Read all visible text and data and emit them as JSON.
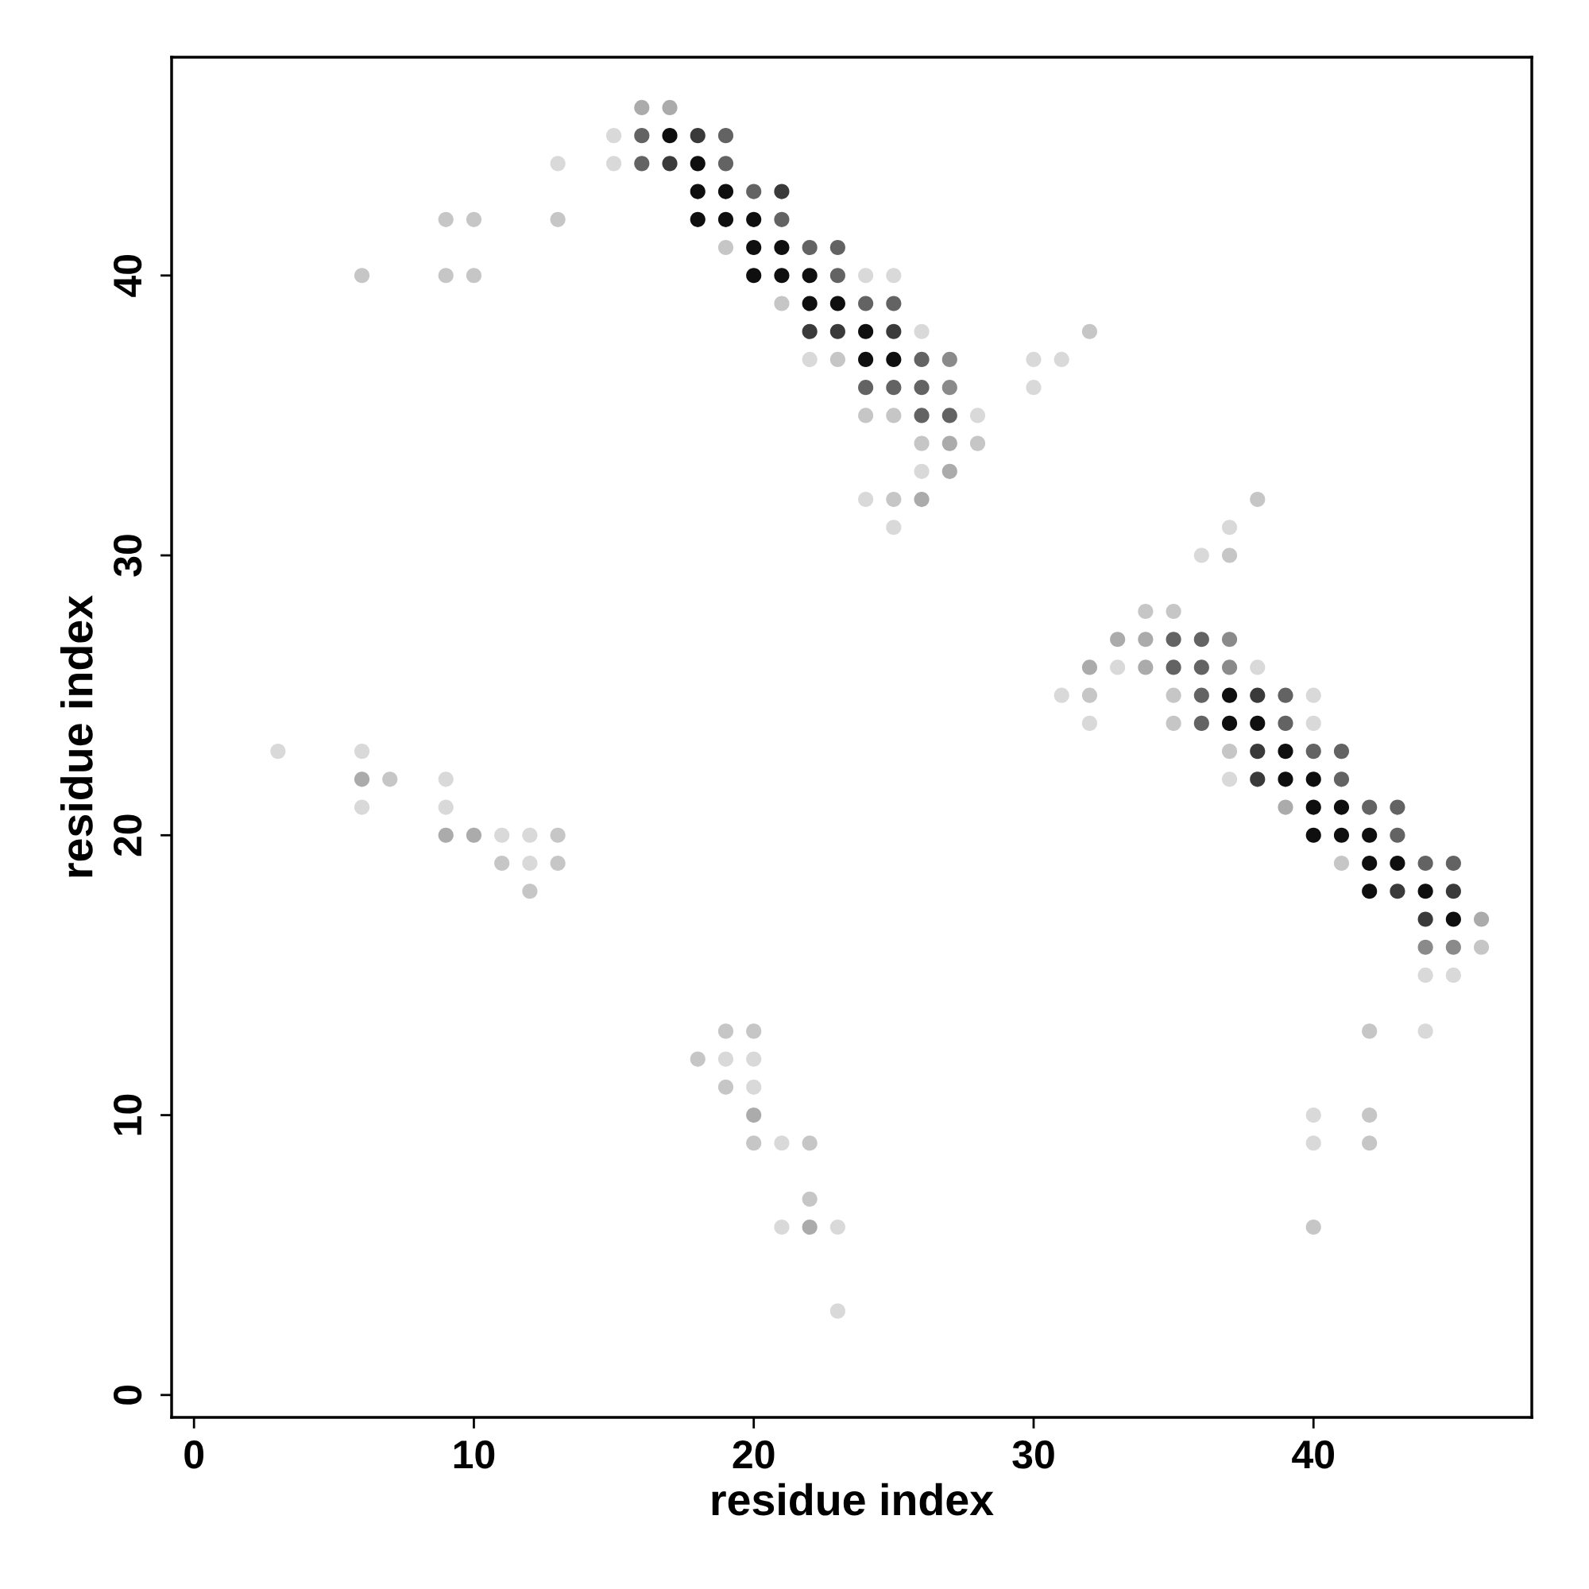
{
  "chart_data": {
    "type": "scatter",
    "xlabel": "residue index",
    "ylabel": "residue index",
    "xlim": [
      -0.8,
      47.8
    ],
    "ylim": [
      -0.8,
      47.8
    ],
    "xticks": [
      0,
      10,
      20,
      30,
      40
    ],
    "yticks": [
      0,
      10,
      20,
      30,
      40
    ],
    "grid": false,
    "marker": "circle",
    "series": [
      {
        "x": [
          16,
          17,
          15,
          16,
          17,
          18,
          19,
          13,
          15,
          16,
          17,
          18,
          19,
          18,
          19,
          20,
          21,
          9,
          10,
          13,
          18,
          19,
          20,
          21,
          19,
          20,
          21,
          22,
          23,
          6,
          9,
          10,
          20,
          21,
          22,
          23,
          24,
          25,
          21,
          22,
          23,
          24,
          25,
          22,
          23,
          24,
          25,
          26,
          32,
          22,
          23,
          24,
          25,
          26,
          27,
          30,
          31,
          24,
          25,
          26,
          27,
          30,
          24,
          25,
          26,
          27,
          28,
          26,
          27,
          28,
          26,
          27,
          24,
          25,
          26,
          38,
          25,
          37,
          36,
          37,
          34,
          35,
          33,
          34,
          35,
          36,
          37,
          32,
          33,
          34,
          35,
          36,
          37,
          38,
          31,
          32,
          35,
          36,
          37,
          38,
          39,
          40,
          32,
          35,
          36,
          37,
          38,
          39,
          40,
          3,
          6,
          37,
          38,
          39,
          40,
          41,
          6,
          7,
          9,
          37,
          38,
          39,
          40,
          41,
          6,
          9,
          39,
          40,
          41,
          42,
          43,
          9,
          10,
          11,
          12,
          13,
          40,
          41,
          42,
          43,
          11,
          12,
          13,
          41,
          42,
          43,
          44,
          45,
          12,
          42,
          43,
          44,
          45,
          44,
          45,
          46,
          44,
          45,
          46,
          44,
          45,
          19,
          20,
          42,
          44,
          18,
          19,
          20,
          19,
          20,
          20,
          40,
          42,
          20,
          21,
          22,
          40,
          42,
          22,
          21,
          22,
          23,
          40,
          23
        ],
        "values": [
          46,
          46,
          45,
          45,
          45,
          45,
          45,
          44,
          44,
          44,
          44,
          44,
          44,
          43,
          43,
          43,
          43,
          42,
          42,
          42,
          42,
          42,
          42,
          42,
          41,
          41,
          41,
          41,
          41,
          40,
          40,
          40,
          40,
          40,
          40,
          40,
          40,
          40,
          39,
          39,
          39,
          39,
          39,
          38,
          38,
          38,
          38,
          38,
          38,
          37,
          37,
          37,
          37,
          37,
          37,
          37,
          37,
          36,
          36,
          36,
          36,
          36,
          35,
          35,
          35,
          35,
          35,
          34,
          34,
          34,
          33,
          33,
          32,
          32,
          32,
          32,
          31,
          31,
          30,
          30,
          28,
          28,
          27,
          27,
          27,
          27,
          27,
          26,
          26,
          26,
          26,
          26,
          26,
          26,
          25,
          25,
          25,
          25,
          25,
          25,
          25,
          25,
          24,
          24,
          24,
          24,
          24,
          24,
          24,
          23,
          23,
          23,
          23,
          23,
          23,
          23,
          22,
          22,
          22,
          22,
          22,
          22,
          22,
          22,
          21,
          21,
          21,
          21,
          21,
          21,
          21,
          20,
          20,
          20,
          20,
          20,
          20,
          20,
          20,
          20,
          19,
          19,
          19,
          19,
          19,
          19,
          19,
          19,
          18,
          18,
          18,
          18,
          18,
          17,
          17,
          17,
          16,
          16,
          16,
          15,
          15,
          13,
          13,
          13,
          13,
          12,
          12,
          12,
          11,
          11,
          10,
          10,
          10,
          9,
          9,
          9,
          9,
          9,
          7,
          6,
          6,
          6,
          6,
          3
        ],
        "colors": [
          "#ababab",
          "#ababab",
          "#d9d9d9",
          "#636363",
          "#0f0f0f",
          "#3a3a3a",
          "#636363",
          "#d9d9d9",
          "#d9d9d9",
          "#636363",
          "#3a3a3a",
          "#0f0f0f",
          "#636363",
          "#0f0f0f",
          "#0f0f0f",
          "#636363",
          "#3a3a3a",
          "#c6c6c6",
          "#c6c6c6",
          "#c6c6c6",
          "#0f0f0f",
          "#0f0f0f",
          "#0f0f0f",
          "#636363",
          "#c6c6c6",
          "#0f0f0f",
          "#0f0f0f",
          "#636363",
          "#636363",
          "#c6c6c6",
          "#c6c6c6",
          "#c6c6c6",
          "#0f0f0f",
          "#0f0f0f",
          "#0f0f0f",
          "#636363",
          "#d9d9d9",
          "#d9d9d9",
          "#c6c6c6",
          "#0f0f0f",
          "#0f0f0f",
          "#636363",
          "#636363",
          "#3a3a3a",
          "#3a3a3a",
          "#0f0f0f",
          "#3a3a3a",
          "#d9d9d9",
          "#c6c6c6",
          "#d9d9d9",
          "#c6c6c6",
          "#0f0f0f",
          "#0f0f0f",
          "#636363",
          "#8a8a8a",
          "#d9d9d9",
          "#d9d9d9",
          "#636363",
          "#636363",
          "#636363",
          "#8a8a8a",
          "#d9d9d9",
          "#c6c6c6",
          "#c6c6c6",
          "#636363",
          "#636363",
          "#d9d9d9",
          "#c6c6c6",
          "#ababab",
          "#c6c6c6",
          "#d9d9d9",
          "#ababab",
          "#d9d9d9",
          "#c6c6c6",
          "#ababab",
          "#c6c6c6",
          "#d9d9d9",
          "#d9d9d9",
          "#d9d9d9",
          "#c6c6c6",
          "#c6c6c6",
          "#c6c6c6",
          "#ababab",
          "#ababab",
          "#636363",
          "#636363",
          "#8a8a8a",
          "#ababab",
          "#d9d9d9",
          "#ababab",
          "#636363",
          "#636363",
          "#8a8a8a",
          "#d9d9d9",
          "#d9d9d9",
          "#c6c6c6",
          "#c6c6c6",
          "#636363",
          "#0f0f0f",
          "#3a3a3a",
          "#636363",
          "#d9d9d9",
          "#d9d9d9",
          "#c6c6c6",
          "#636363",
          "#0f0f0f",
          "#0f0f0f",
          "#636363",
          "#d9d9d9",
          "#d9d9d9",
          "#d9d9d9",
          "#c6c6c6",
          "#3a3a3a",
          "#0f0f0f",
          "#636363",
          "#636363",
          "#ababab",
          "#c6c6c6",
          "#d9d9d9",
          "#d9d9d9",
          "#3a3a3a",
          "#0f0f0f",
          "#0f0f0f",
          "#636363",
          "#d9d9d9",
          "#d9d9d9",
          "#ababab",
          "#0f0f0f",
          "#0f0f0f",
          "#636363",
          "#636363",
          "#ababab",
          "#ababab",
          "#d9d9d9",
          "#d9d9d9",
          "#c6c6c6",
          "#0f0f0f",
          "#0f0f0f",
          "#0f0f0f",
          "#636363",
          "#c6c6c6",
          "#d9d9d9",
          "#c6c6c6",
          "#c6c6c6",
          "#0f0f0f",
          "#0f0f0f",
          "#636363",
          "#636363",
          "#c6c6c6",
          "#0f0f0f",
          "#3a3a3a",
          "#0f0f0f",
          "#3a3a3a",
          "#3a3a3a",
          "#0f0f0f",
          "#ababab",
          "#8a8a8a",
          "#8a8a8a",
          "#c6c6c6",
          "#d9d9d9",
          "#d9d9d9",
          "#c6c6c6",
          "#c6c6c6",
          "#c6c6c6",
          "#d9d9d9",
          "#c6c6c6",
          "#d9d9d9",
          "#d9d9d9",
          "#c6c6c6",
          "#d9d9d9",
          "#ababab",
          "#d9d9d9",
          "#c6c6c6",
          "#c6c6c6",
          "#d9d9d9",
          "#c6c6c6",
          "#d9d9d9",
          "#c6c6c6",
          "#c6c6c6",
          "#d9d9d9",
          "#ababab",
          "#d9d9d9",
          "#c6c6c6",
          "#d9d9d9"
        ]
      }
    ]
  }
}
